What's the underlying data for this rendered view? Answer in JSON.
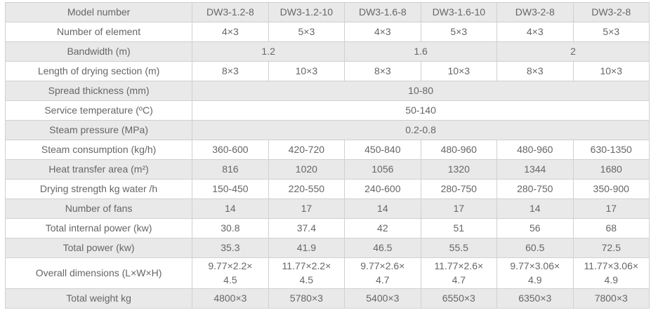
{
  "table": {
    "name": "dw3-dryer-specifications",
    "rows": [
      {
        "name": "model-number",
        "shaded": true,
        "label": "Model number",
        "cells": [
          {
            "text": "DW3-1.2-8",
            "span": 1
          },
          {
            "text": "DW3-1.2-10",
            "span": 1
          },
          {
            "text": "DW3-1.6-8",
            "span": 1
          },
          {
            "text": "DW3-1.6-10",
            "span": 1
          },
          {
            "text": "DW3-2-8",
            "span": 1
          },
          {
            "text": "DW3-2-8",
            "span": 1
          }
        ]
      },
      {
        "name": "number-of-element",
        "shaded": false,
        "label": "Number of element",
        "cells": [
          {
            "text": "4×3",
            "span": 1
          },
          {
            "text": "5×3",
            "span": 1
          },
          {
            "text": "4×3",
            "span": 1
          },
          {
            "text": "5×3",
            "span": 1
          },
          {
            "text": "4×3",
            "span": 1
          },
          {
            "text": "5×3",
            "span": 1
          }
        ]
      },
      {
        "name": "bandwidth",
        "shaded": true,
        "label": "Bandwidth (m)",
        "cells": [
          {
            "text": "1.2",
            "span": 2
          },
          {
            "text": "1.6",
            "span": 2
          },
          {
            "text": "2",
            "span": 2
          }
        ]
      },
      {
        "name": "length-of-drying-section",
        "shaded": false,
        "label": "Length of drying section (m)",
        "cells": [
          {
            "text": "8×3",
            "span": 1
          },
          {
            "text": "10×3",
            "span": 1
          },
          {
            "text": "8×3",
            "span": 1
          },
          {
            "text": "10×3",
            "span": 1
          },
          {
            "text": "8×3",
            "span": 1
          },
          {
            "text": "10×3",
            "span": 1
          }
        ]
      },
      {
        "name": "spread-thickness",
        "shaded": true,
        "label": "Spread thickness (mm)",
        "cells": [
          {
            "text": "10-80",
            "span": 6
          }
        ]
      },
      {
        "name": "service-temperature",
        "shaded": false,
        "label": "Service temperature (ºC)",
        "cells": [
          {
            "text": "50-140",
            "span": 6
          }
        ]
      },
      {
        "name": "steam-pressure",
        "shaded": true,
        "label": "Steam pressure (MPa)",
        "cells": [
          {
            "text": "0.2-0.8",
            "span": 6
          }
        ]
      },
      {
        "name": "steam-consumption",
        "shaded": false,
        "label": "Steam consumption (kg/h)",
        "cells": [
          {
            "text": "360-600",
            "span": 1
          },
          {
            "text": "420-720",
            "span": 1
          },
          {
            "text": "450-840",
            "span": 1
          },
          {
            "text": "480-960",
            "span": 1
          },
          {
            "text": "480-960",
            "span": 1
          },
          {
            "text": "630-1350",
            "span": 1
          }
        ]
      },
      {
        "name": "heat-transfer-area",
        "shaded": true,
        "label": "Heat transfer area (m²)",
        "cells": [
          {
            "text": "816",
            "span": 1
          },
          {
            "text": "1020",
            "span": 1
          },
          {
            "text": "1056",
            "span": 1
          },
          {
            "text": "1320",
            "span": 1
          },
          {
            "text": "1344",
            "span": 1
          },
          {
            "text": "1680",
            "span": 1
          }
        ]
      },
      {
        "name": "drying-strength",
        "shaded": false,
        "label": "Drying strength kg water /h",
        "cells": [
          {
            "text": "150-450",
            "span": 1
          },
          {
            "text": "220-550",
            "span": 1
          },
          {
            "text": "240-600",
            "span": 1
          },
          {
            "text": "280-750",
            "span": 1
          },
          {
            "text": "280-750",
            "span": 1
          },
          {
            "text": "350-900",
            "span": 1
          }
        ]
      },
      {
        "name": "number-of-fans",
        "shaded": true,
        "label": "Number of fans",
        "cells": [
          {
            "text": "14",
            "span": 1
          },
          {
            "text": "17",
            "span": 1
          },
          {
            "text": "14",
            "span": 1
          },
          {
            "text": "17",
            "span": 1
          },
          {
            "text": "14",
            "span": 1
          },
          {
            "text": "17",
            "span": 1
          }
        ]
      },
      {
        "name": "total-internal-power",
        "shaded": false,
        "label": "Total internal power (kw)",
        "cells": [
          {
            "text": "30.8",
            "span": 1
          },
          {
            "text": "37.4",
            "span": 1
          },
          {
            "text": "42",
            "span": 1
          },
          {
            "text": "51",
            "span": 1
          },
          {
            "text": "56",
            "span": 1
          },
          {
            "text": "68",
            "span": 1
          }
        ]
      },
      {
        "name": "total-power",
        "shaded": true,
        "label": "Total power (kw)",
        "cells": [
          {
            "text": "35.3",
            "span": 1
          },
          {
            "text": "41.9",
            "span": 1
          },
          {
            "text": "46.5",
            "span": 1
          },
          {
            "text": "55.5",
            "span": 1
          },
          {
            "text": "60.5",
            "span": 1
          },
          {
            "text": "72.5",
            "span": 1
          }
        ]
      },
      {
        "name": "overall-dimensions",
        "shaded": false,
        "label": "Overall dimensions (L×W×H)",
        "cells": [
          {
            "text": "9.77×2.2×\n4.5",
            "span": 1
          },
          {
            "text": "11.77×2.2×\n4.5",
            "span": 1
          },
          {
            "text": "9.77×2.6×\n4.7",
            "span": 1
          },
          {
            "text": "11.77×2.6×\n4.7",
            "span": 1
          },
          {
            "text": "9.77×3.06×\n4.9",
            "span": 1
          },
          {
            "text": "11.77×3.06×\n4.9",
            "span": 1
          }
        ]
      },
      {
        "name": "total-weight",
        "shaded": true,
        "label": "Total weight kg",
        "cells": [
          {
            "text": "4800×3",
            "span": 1
          },
          {
            "text": "5780×3",
            "span": 1
          },
          {
            "text": "5400×3",
            "span": 1
          },
          {
            "text": "6550×3",
            "span": 1
          },
          {
            "text": "6350×3",
            "span": 1
          },
          {
            "text": "7800×3",
            "span": 1
          }
        ]
      }
    ],
    "colors": {
      "shaded_row_bg": "#e9e9e9",
      "plain_row_bg": "#ffffff",
      "border": "#d0d0d0",
      "text": "#666666"
    }
  }
}
